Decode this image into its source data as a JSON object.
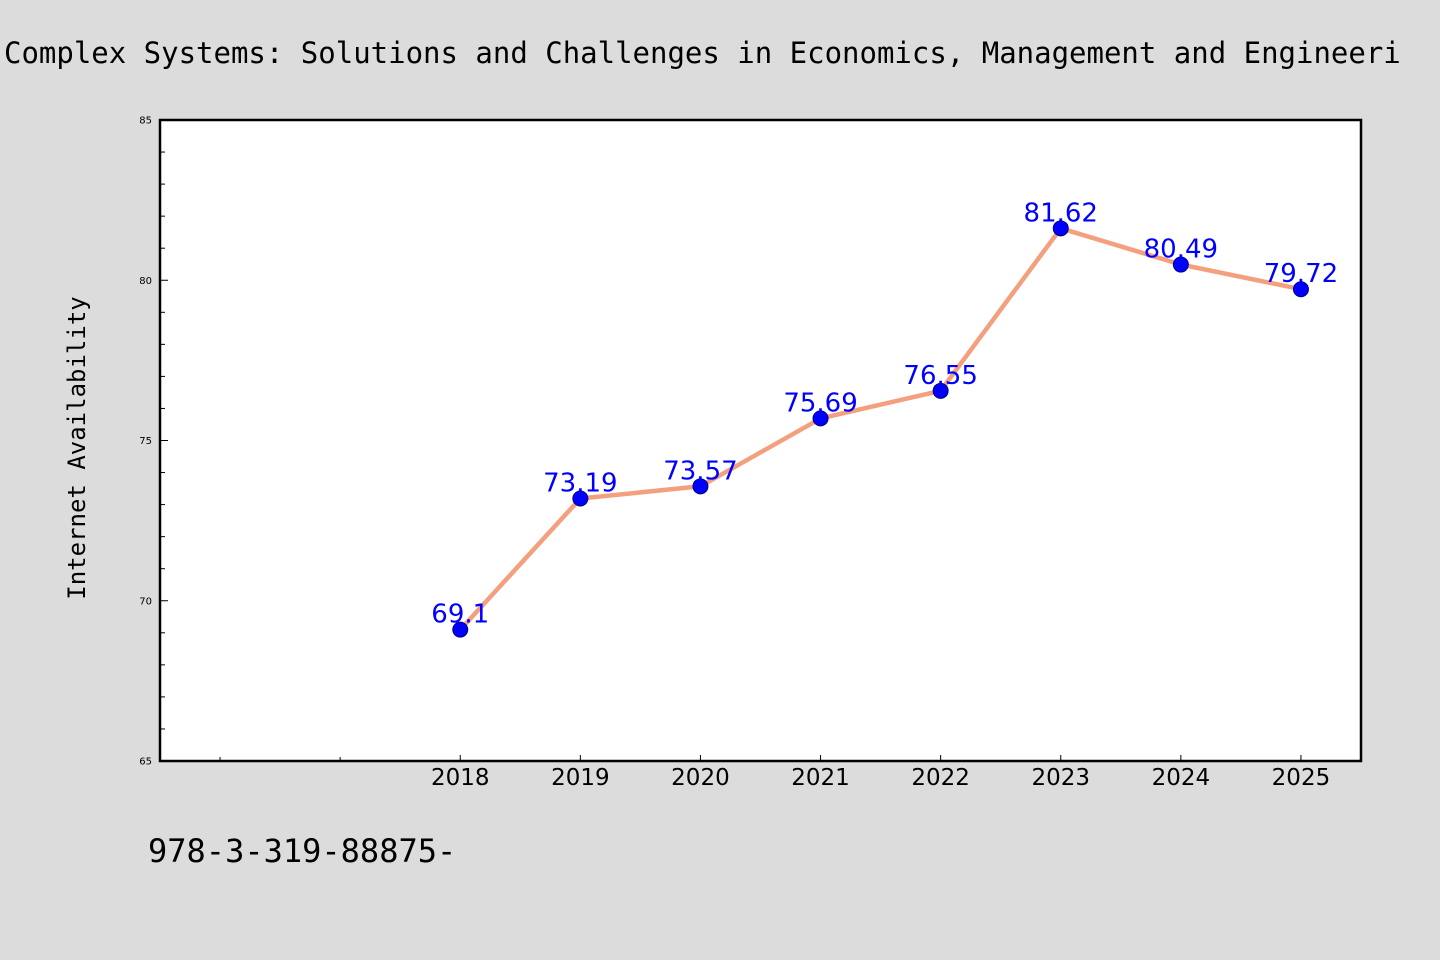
{
  "header": {
    "title": "Complex Systems: Solutions and Challenges in Economics, Management and Engineeri"
  },
  "footer": {
    "isbn": "978-3-319-88875-"
  },
  "colors": {
    "background": "#dcdcdc",
    "plot_background": "#ffffff",
    "line": "#f4a07e",
    "marker": "#0000ff",
    "marker_edge": "#000080",
    "data_label": "#0000ff"
  },
  "chart_data": {
    "type": "line",
    "title": "Complex Systems: Solutions and Challenges in Economics, Management and Engineeri",
    "xlabel": "",
    "ylabel": "Internet Availability",
    "ylim": [
      65,
      85
    ],
    "xlim": [
      2015.5,
      2025.5
    ],
    "yticks": [
      65,
      70,
      75,
      80,
      85
    ],
    "x": [
      "2018",
      "2019",
      "2020",
      "2021",
      "2022",
      "2023",
      "2024",
      "2025"
    ],
    "series": [
      {
        "values": [
          69.1,
          73.19,
          73.57,
          75.69,
          76.55,
          81.62,
          80.49,
          79.72
        ],
        "labels": [
          "69.1",
          "73.19",
          "73.57",
          "75.69",
          "76.55",
          "81.62",
          "80.49",
          "79.72"
        ]
      }
    ],
    "grid": false,
    "legend": "none"
  }
}
